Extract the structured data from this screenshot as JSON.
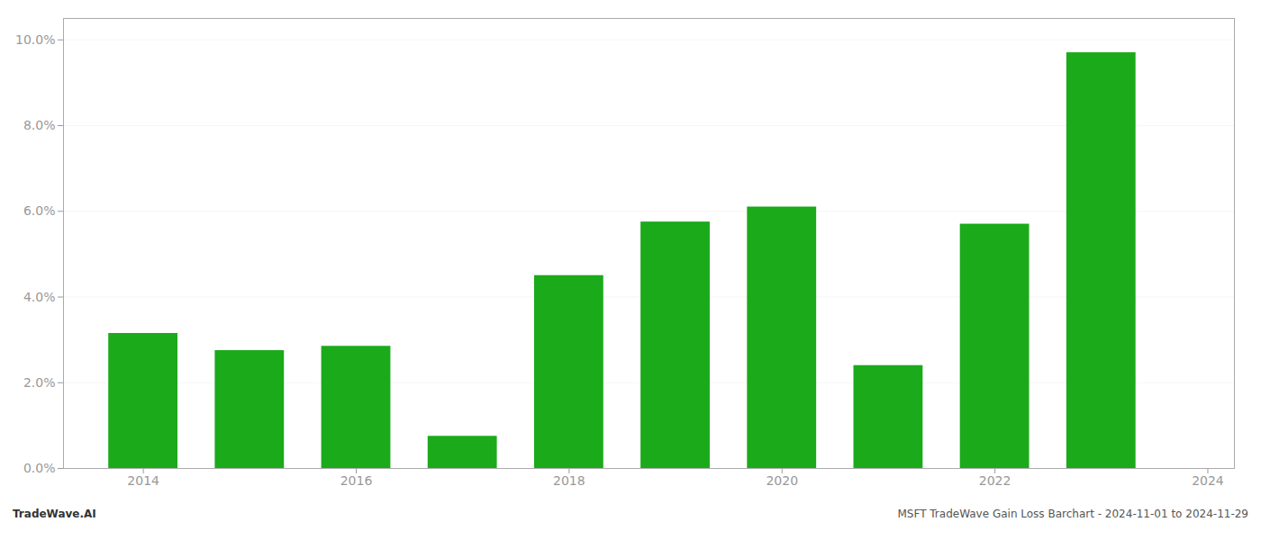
{
  "chart_data": {
    "type": "bar",
    "x": [
      2014,
      2015,
      2016,
      2017,
      2018,
      2019,
      2020,
      2021,
      2022,
      2023
    ],
    "values": [
      0.0315,
      0.0275,
      0.0285,
      0.0075,
      0.045,
      0.0575,
      0.061,
      0.024,
      0.057,
      0.097
    ],
    "color": "#1aaa1a",
    "xlim": [
      2013.25,
      2024.25
    ],
    "xticks": [
      2014,
      2016,
      2018,
      2020,
      2022,
      2024
    ],
    "ylim": [
      0,
      0.105
    ],
    "yticks": [
      {
        "value": 0.0,
        "label": "0.0%"
      },
      {
        "value": 0.02,
        "label": "2.0%"
      },
      {
        "value": 0.04,
        "label": "4.0%"
      },
      {
        "value": 0.06,
        "label": "6.0%"
      },
      {
        "value": 0.08,
        "label": "8.0%"
      },
      {
        "value": 0.1,
        "label": "10.0%"
      }
    ],
    "grid": true,
    "annotations": [
      "TradeWave.AI",
      "MSFT TradeWave Gain Loss Barchart - 2024-11-01 to 2024-11-29"
    ]
  }
}
